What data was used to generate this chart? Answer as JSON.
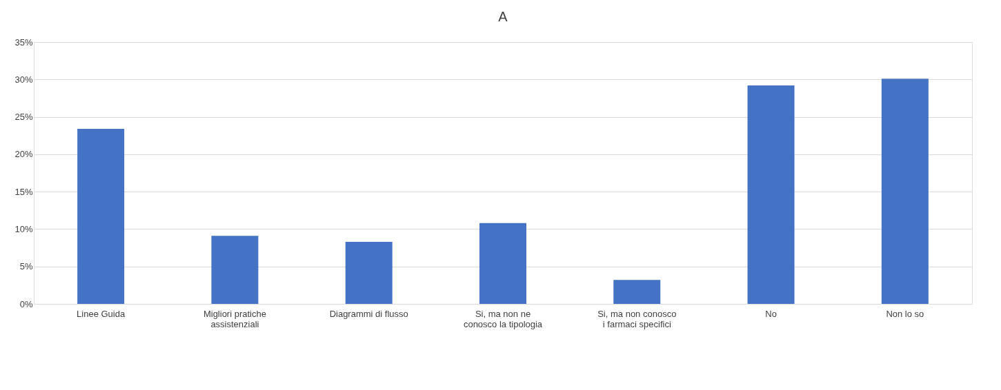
{
  "chart_data": {
    "type": "bar",
    "title": "A",
    "categories": [
      "Linee Guida",
      "Migliori pratiche\nassistenziali",
      "Diagrammi di flusso",
      "Si, ma non ne\nconosco la tipologia",
      "Si, ma non conosco\ni farmaci specifici",
      "No",
      "Non lo so"
    ],
    "values": [
      23.4,
      9.1,
      8.3,
      10.8,
      3.2,
      29.2,
      30.1
    ],
    "color": "#4472c4",
    "ylim": [
      0,
      35
    ],
    "yticks": [
      {
        "value": 0,
        "label": "0%"
      },
      {
        "value": 5,
        "label": "5%"
      },
      {
        "value": 10,
        "label": "10%"
      },
      {
        "value": 15,
        "label": "15%"
      },
      {
        "value": 20,
        "label": "20%"
      },
      {
        "value": 25,
        "label": "25%"
      },
      {
        "value": 30,
        "label": "30%"
      },
      {
        "value": 35,
        "label": "35%"
      }
    ],
    "grid": "y"
  }
}
